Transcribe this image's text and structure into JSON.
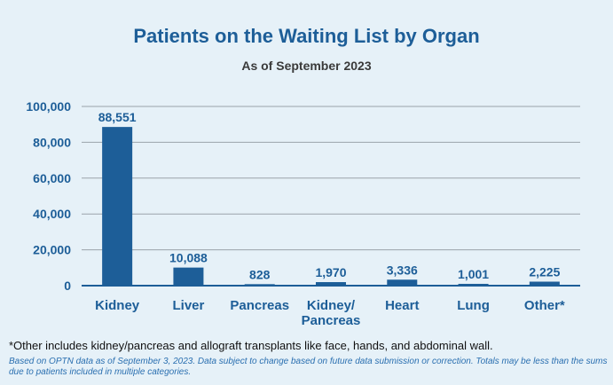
{
  "chart_data": {
    "type": "bar",
    "title": "Patients on the Waiting List by Organ",
    "subtitle": "As of September 2023",
    "categories": [
      "Kidney",
      "Liver",
      "Pancreas",
      "Kidney/\nPancreas",
      "Heart",
      "Lung",
      "Other*"
    ],
    "values": [
      88551,
      10088,
      828,
      1970,
      3336,
      1001,
      2225
    ],
    "data_labels": [
      "88,551",
      "10,088",
      "828",
      "1,970",
      "3,336",
      "1,001",
      "2,225"
    ],
    "ylim": [
      0,
      100000
    ],
    "yticks": [
      0,
      20000,
      40000,
      60000,
      80000,
      100000
    ],
    "ytick_labels": [
      "0",
      "20,000",
      "40,000",
      "60,000",
      "80,000",
      "100,000"
    ],
    "xlabel": "",
    "ylabel": "",
    "grid": true,
    "bar_color": "#1d5e98"
  },
  "footnote": "*Other includes kidney/pancreas and allograft transplants like face, hands, and abdominal wall.",
  "source_note": "Based on OPTN data as of September 3, 2023. Data subject to change based on future data submission or correction. Totals may be less than the sums due to patients included in multiple categories."
}
